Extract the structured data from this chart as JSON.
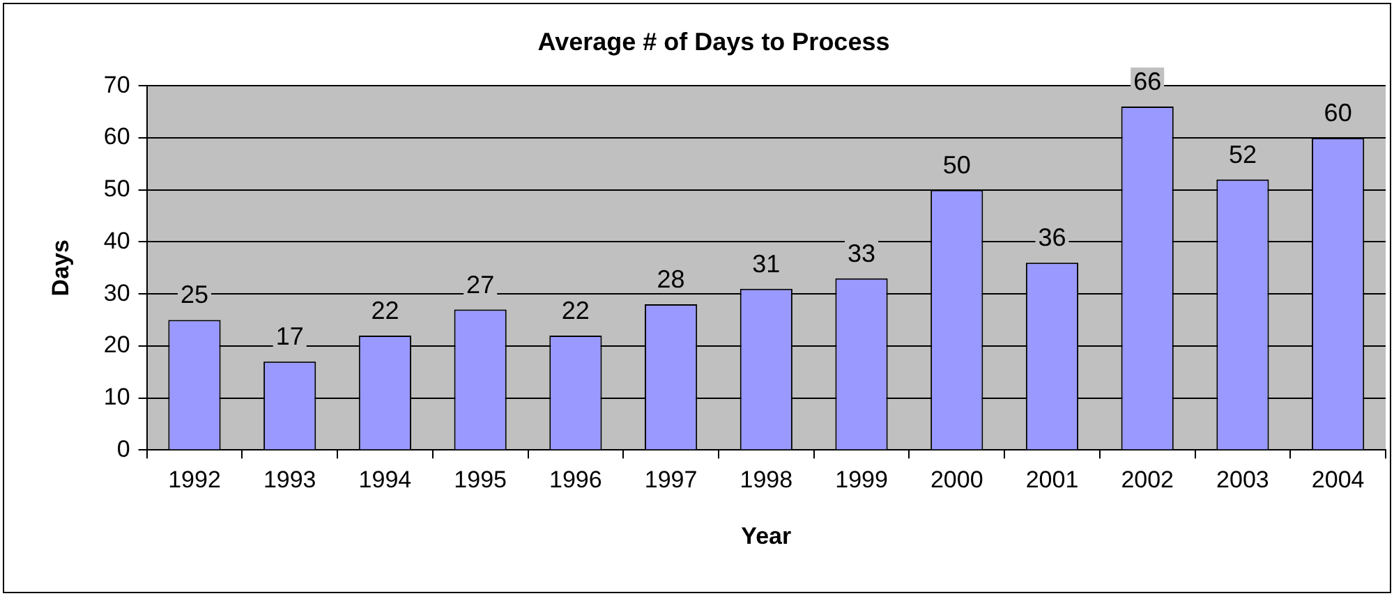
{
  "chart_data": {
    "type": "bar",
    "title": "Average # of Days to Process",
    "xlabel": "Year",
    "ylabel": "Days",
    "categories": [
      "1992",
      "1993",
      "1994",
      "1995",
      "1996",
      "1997",
      "1998",
      "1999",
      "2000",
      "2001",
      "2002",
      "2003",
      "2004"
    ],
    "values": [
      25,
      17,
      22,
      27,
      22,
      28,
      31,
      33,
      50,
      36,
      66,
      52,
      60
    ],
    "color": "#9999ff",
    "ylim": [
      0,
      70
    ],
    "yticks": [
      0,
      10,
      20,
      30,
      40,
      50,
      60,
      70
    ],
    "grid": "y",
    "legend": false,
    "data_labels": true
  }
}
